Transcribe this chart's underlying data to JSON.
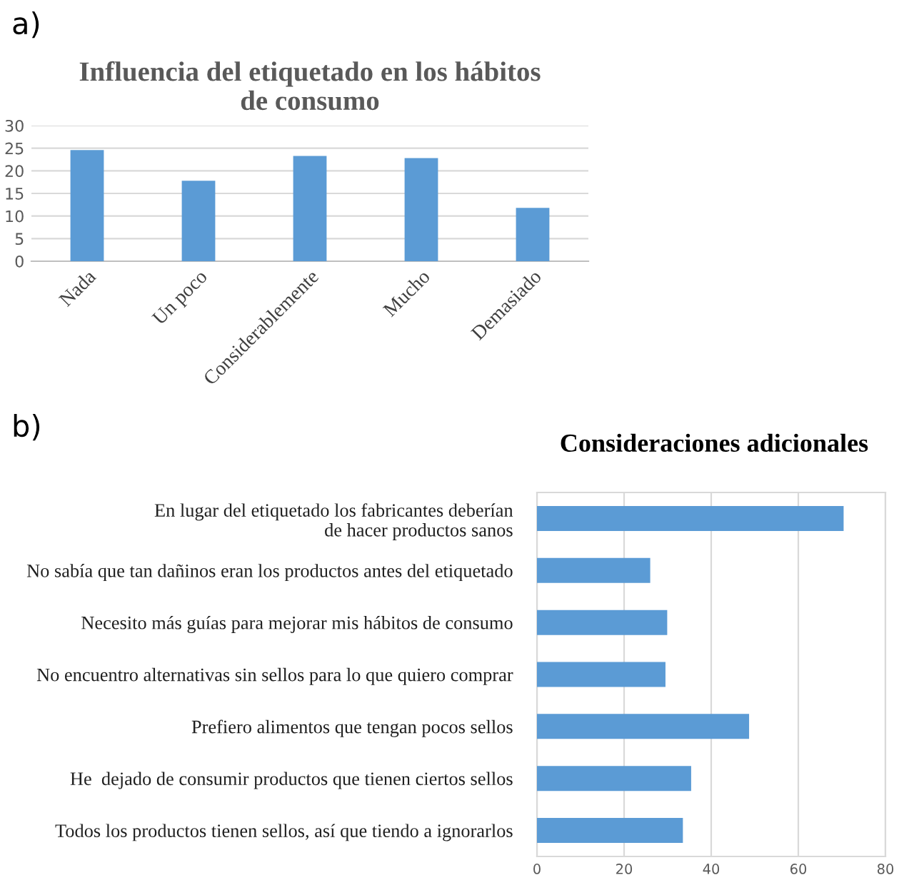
{
  "chart_data": [
    {
      "type": "bar",
      "title": "Influencia del etiquetado en los hábitos\nde consumo",
      "annotations": [
        "a)"
      ],
      "categories": [
        "Nada",
        "Un poco",
        "Considerablemente",
        "Mucho",
        "Demasiado"
      ],
      "values": [
        24.6,
        17.8,
        23.3,
        22.8,
        11.8
      ],
      "color": "#5b9bd5",
      "ylim": [
        0,
        30
      ],
      "yticks": [
        0,
        5,
        10,
        15,
        20,
        25,
        30
      ],
      "grid": "y"
    },
    {
      "type": "bar",
      "orientation": "horizontal",
      "title": "Consideraciones adicionales",
      "annotations": [
        "b)"
      ],
      "categories": [
        "En lugar del etiquetado los fabricantes deberían\nde hacer productos sanos",
        "No sabía que tan dañinos eran los productos antes del etiquetado",
        "Necesito más guías para mejorar mis hábitos de consumo",
        "No encuentro alternativas sin sellos para lo que quiero comprar",
        "Prefiero alimentos que tengan pocos sellos",
        "He  dejado de consumir productos que tienen ciertos sellos",
        "Todos los productos tienen sellos, así que tiendo a ignorarlos"
      ],
      "values": [
        70.4,
        26.0,
        29.9,
        29.5,
        48.7,
        35.4,
        33.5
      ],
      "color": "#5b9bd5",
      "xlim": [
        0,
        80
      ],
      "xticks": [
        0,
        20,
        40,
        60,
        80
      ],
      "grid": "x"
    }
  ]
}
